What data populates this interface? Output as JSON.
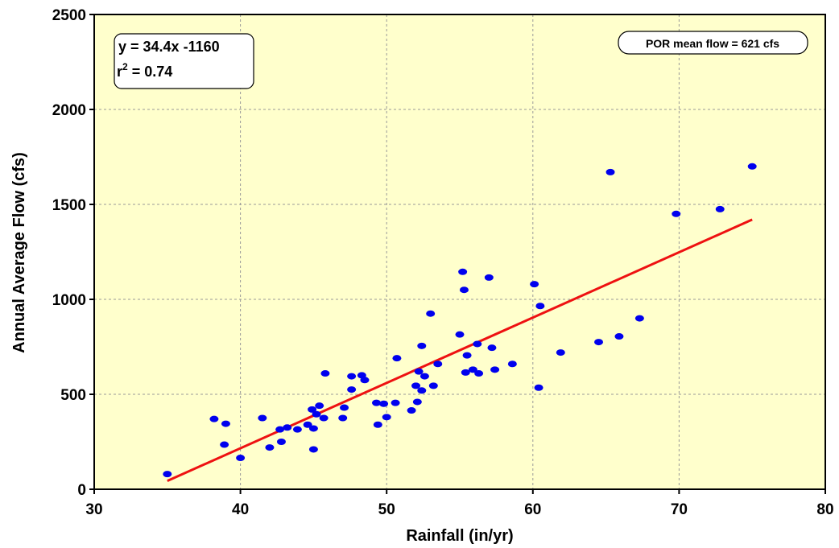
{
  "colors": {
    "plot_background": "#ffffcc",
    "points": "#0000ee",
    "trendline": "#ee1111",
    "grid": "#999999"
  },
  "chart_data": {
    "type": "scatter",
    "title": "",
    "xlabel": "Rainfall (in/yr)",
    "ylabel": "Annual Average Flow (cfs)",
    "xlim": [
      30,
      80
    ],
    "ylim": [
      0,
      2500
    ],
    "xticks": [
      30,
      40,
      50,
      60,
      70,
      80
    ],
    "yticks": [
      0,
      500,
      1000,
      1500,
      2000,
      2500
    ],
    "grid": true,
    "legend": "none",
    "points": [
      [
        35.0,
        80
      ],
      [
        38.2,
        370
      ],
      [
        38.9,
        235
      ],
      [
        39.0,
        345
      ],
      [
        40.0,
        165
      ],
      [
        41.5,
        375
      ],
      [
        42.0,
        220
      ],
      [
        42.7,
        315
      ],
      [
        42.8,
        250
      ],
      [
        43.2,
        325
      ],
      [
        43.9,
        315
      ],
      [
        44.6,
        340
      ],
      [
        44.9,
        420
      ],
      [
        45.0,
        320
      ],
      [
        45.0,
        210
      ],
      [
        45.2,
        395
      ],
      [
        45.4,
        440
      ],
      [
        45.7,
        375
      ],
      [
        45.8,
        610
      ],
      [
        47.0,
        375
      ],
      [
        47.1,
        430
      ],
      [
        47.6,
        525
      ],
      [
        47.6,
        595
      ],
      [
        48.3,
        600
      ],
      [
        48.5,
        575
      ],
      [
        49.3,
        455
      ],
      [
        49.4,
        340
      ],
      [
        49.8,
        450
      ],
      [
        50.0,
        380
      ],
      [
        50.6,
        455
      ],
      [
        50.7,
        690
      ],
      [
        51.7,
        415
      ],
      [
        52.0,
        545
      ],
      [
        52.1,
        460
      ],
      [
        52.2,
        620
      ],
      [
        52.4,
        520
      ],
      [
        52.4,
        755
      ],
      [
        52.6,
        595
      ],
      [
        53.0,
        925
      ],
      [
        53.2,
        545
      ],
      [
        53.5,
        660
      ],
      [
        55.0,
        815
      ],
      [
        55.2,
        1145
      ],
      [
        55.3,
        1050
      ],
      [
        55.4,
        615
      ],
      [
        55.5,
        705
      ],
      [
        55.9,
        630
      ],
      [
        56.2,
        765
      ],
      [
        56.3,
        610
      ],
      [
        57.0,
        1115
      ],
      [
        57.2,
        745
      ],
      [
        57.4,
        630
      ],
      [
        58.6,
        660
      ],
      [
        60.1,
        1080
      ],
      [
        60.4,
        535
      ],
      [
        60.5,
        965
      ],
      [
        61.9,
        720
      ],
      [
        64.5,
        775
      ],
      [
        65.3,
        1670
      ],
      [
        65.9,
        805
      ],
      [
        67.3,
        900
      ],
      [
        69.8,
        1450
      ],
      [
        72.8,
        1475
      ],
      [
        75.0,
        1700
      ]
    ],
    "trendline": {
      "x": [
        35,
        75
      ],
      "y": [
        44,
        1420
      ],
      "equation": "y = 34.4x -1160",
      "r2_prefix": "r",
      "r2_sup": "2",
      "r2_suffix": " = 0.74"
    },
    "annotations": {
      "por_mean": "POR mean flow = 621 cfs"
    }
  }
}
